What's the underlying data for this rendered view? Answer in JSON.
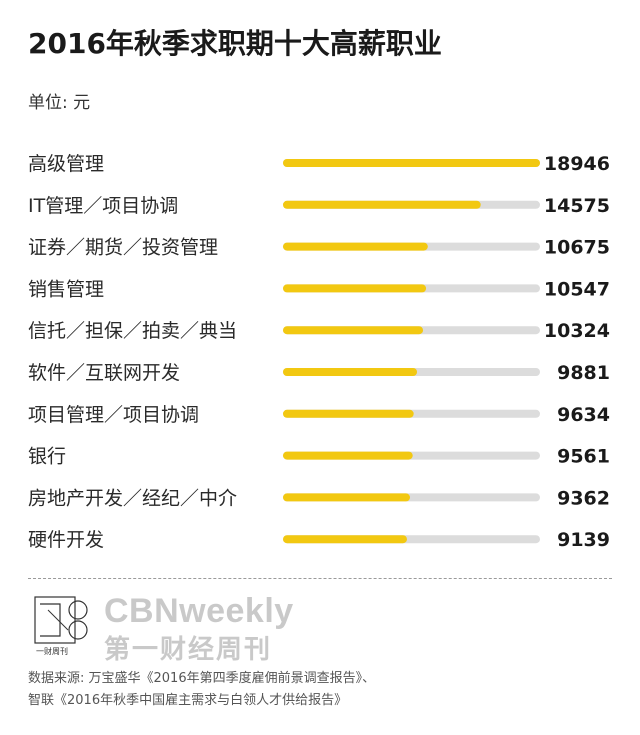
{
  "title": "2016年秋季求职期十大高薪职业",
  "unit_label": "单位: 元",
  "chart_data": {
    "type": "bar",
    "orientation": "horizontal",
    "categories": [
      "高级管理",
      "IT管理／项目协调",
      "证券／期货／投资管理",
      "销售管理",
      "信托／担保／拍卖／典当",
      "软件／互联网开发",
      "项目管理／项目协调",
      "银行",
      "房地产开发／经纪／中介",
      "硬件开发"
    ],
    "values": [
      18946,
      14575,
      10675,
      10547,
      10324,
      9881,
      9634,
      9561,
      9362,
      9139
    ],
    "xlim": [
      0,
      18946
    ],
    "grid": false,
    "bar_color": "#f2c811",
    "track_color": "#dcdcdc"
  },
  "footer": {
    "logo_text": "一财周刊",
    "brand_en": "CBNweekly",
    "brand_cn": "第一财经周刊",
    "source_line1": "数据来源: 万宝盛华《2016年第四季度雇佣前景调查报告》、",
    "source_line2": "智联《2016年秋季中国雇主需求与白领人才供给报告》"
  }
}
